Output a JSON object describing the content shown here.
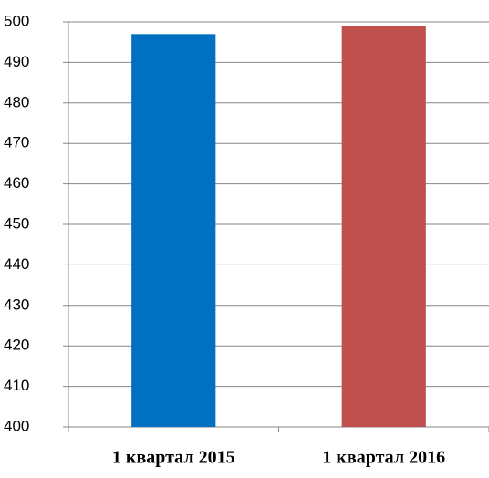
{
  "chart_data": {
    "type": "bar",
    "categories": [
      "1 квартал 2015",
      "1 квартал 2016"
    ],
    "values": [
      497,
      499
    ],
    "colors": [
      "#0070c0",
      "#c0504d"
    ],
    "ylim": [
      400,
      500
    ],
    "yticks": [
      400,
      410,
      420,
      430,
      440,
      450,
      460,
      470,
      480,
      490,
      500
    ],
    "grid": true
  }
}
